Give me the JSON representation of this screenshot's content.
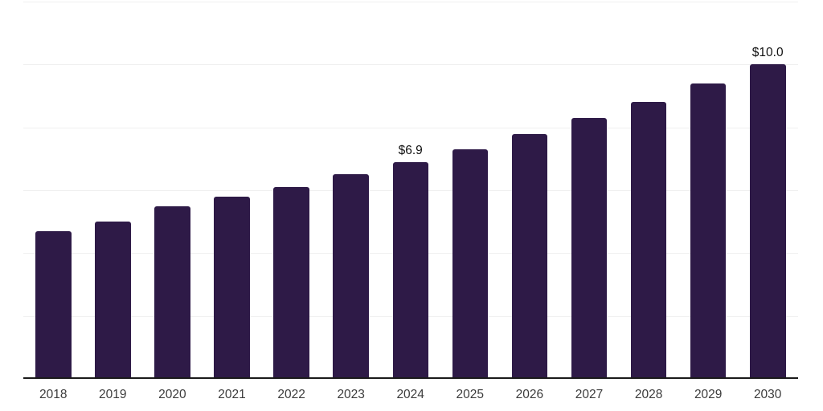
{
  "chart_data": {
    "type": "bar",
    "title": "",
    "xlabel": "",
    "ylabel": "",
    "categories": [
      "2018",
      "2019",
      "2020",
      "2021",
      "2022",
      "2023",
      "2024",
      "2025",
      "2026",
      "2027",
      "2028",
      "2029",
      "2030"
    ],
    "values": [
      4.7,
      5.0,
      5.5,
      5.8,
      6.1,
      6.5,
      6.9,
      7.3,
      7.8,
      8.3,
      8.8,
      9.4,
      10.0
    ],
    "data_labels": [
      {
        "category": "2024",
        "text": "$6.9"
      },
      {
        "category": "2030",
        "text": "$10.0"
      }
    ],
    "ylim": [
      0,
      12
    ],
    "gridline_step": 2,
    "grid": true,
    "legend": false,
    "y_axis_ticks_visible": false,
    "colors": {
      "bar": "#2E1A47",
      "gridline": "#EFEFEF",
      "axis_line": "#1A1A1A",
      "tick_label": "#3C3C3C",
      "data_label": "#111111",
      "background": "#FFFFFF"
    }
  }
}
